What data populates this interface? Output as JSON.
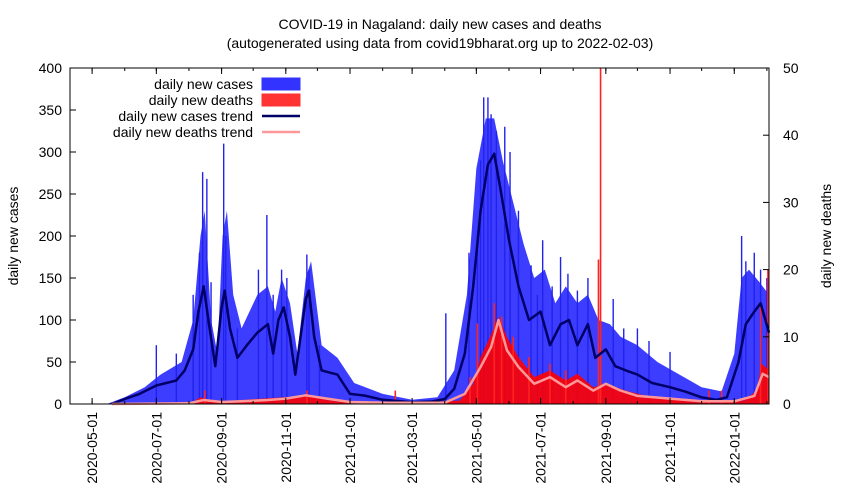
{
  "chart_data": {
    "type": "bar",
    "title": "COVID-19 in Nagaland: daily new cases and deaths",
    "subtitle": "(autogenerated using data from covid19bharat.org up to 2022-02-03)",
    "ylabel": "daily new cases",
    "y2label": "daily new deaths",
    "xlim": [
      "2020-04-10",
      "2022-02-03"
    ],
    "ylim": [
      0,
      400
    ],
    "y2lim": [
      0,
      50
    ],
    "yticks": [
      0,
      50,
      100,
      150,
      200,
      250,
      300,
      350,
      400
    ],
    "y2ticks": [
      0,
      10,
      20,
      30,
      40,
      50
    ],
    "xticks": [
      "2020-05-01",
      "2020-07-01",
      "2020-09-01",
      "2020-11-01",
      "2021-01-01",
      "2021-03-01",
      "2021-05-01",
      "2021-07-01",
      "2021-09-01",
      "2021-11-01",
      "2022-01-01"
    ],
    "grid": false,
    "legend_position": "top-left",
    "legend": [
      {
        "label": "daily new cases",
        "color": "#3333ff",
        "style": "box"
      },
      {
        "label": "daily new deaths",
        "color": "#ff3333",
        "style": "box"
      },
      {
        "label": "daily new cases trend",
        "color": "#000066",
        "style": "line"
      },
      {
        "label": "daily new deaths trend",
        "color": "#ff9999",
        "style": "line"
      }
    ],
    "series": [
      {
        "name": "daily new cases trend",
        "axis": "y",
        "points": [
          [
            "2020-05-20",
            0
          ],
          [
            "2020-06-01",
            6
          ],
          [
            "2020-06-15",
            12
          ],
          [
            "2020-07-01",
            22
          ],
          [
            "2020-07-20",
            28
          ],
          [
            "2020-07-28",
            40
          ],
          [
            "2020-08-05",
            65
          ],
          [
            "2020-08-10",
            110
          ],
          [
            "2020-08-15",
            140
          ],
          [
            "2020-08-20",
            95
          ],
          [
            "2020-08-26",
            45
          ],
          [
            "2020-09-01",
            115
          ],
          [
            "2020-09-04",
            135
          ],
          [
            "2020-09-09",
            90
          ],
          [
            "2020-09-16",
            55
          ],
          [
            "2020-09-25",
            70
          ],
          [
            "2020-10-05",
            85
          ],
          [
            "2020-10-15",
            95
          ],
          [
            "2020-10-20",
            60
          ],
          [
            "2020-10-25",
            100
          ],
          [
            "2020-10-30",
            115
          ],
          [
            "2020-11-05",
            80
          ],
          [
            "2020-11-10",
            35
          ],
          [
            "2020-11-20",
            125
          ],
          [
            "2020-11-23",
            135
          ],
          [
            "2020-11-28",
            80
          ],
          [
            "2020-12-05",
            40
          ],
          [
            "2020-12-20",
            35
          ],
          [
            "2021-01-01",
            12
          ],
          [
            "2021-01-15",
            10
          ],
          [
            "2021-02-01",
            5
          ],
          [
            "2021-03-01",
            2
          ],
          [
            "2021-03-20",
            3
          ],
          [
            "2021-04-01",
            6
          ],
          [
            "2021-04-10",
            18
          ],
          [
            "2021-04-20",
            60
          ],
          [
            "2021-04-28",
            140
          ],
          [
            "2021-05-05",
            230
          ],
          [
            "2021-05-12",
            285
          ],
          [
            "2021-05-18",
            298
          ],
          [
            "2021-05-24",
            255
          ],
          [
            "2021-06-01",
            195
          ],
          [
            "2021-06-10",
            140
          ],
          [
            "2021-06-20",
            100
          ],
          [
            "2021-07-01",
            110
          ],
          [
            "2021-07-10",
            70
          ],
          [
            "2021-07-20",
            95
          ],
          [
            "2021-07-28",
            100
          ],
          [
            "2021-08-05",
            70
          ],
          [
            "2021-08-15",
            95
          ],
          [
            "2021-08-22",
            55
          ],
          [
            "2021-09-01",
            65
          ],
          [
            "2021-09-10",
            45
          ],
          [
            "2021-09-20",
            40
          ],
          [
            "2021-10-01",
            35
          ],
          [
            "2021-10-15",
            25
          ],
          [
            "2021-11-01",
            20
          ],
          [
            "2021-11-15",
            15
          ],
          [
            "2021-12-01",
            8
          ],
          [
            "2021-12-15",
            5
          ],
          [
            "2021-12-25",
            8
          ],
          [
            "2022-01-05",
            50
          ],
          [
            "2022-01-12",
            95
          ],
          [
            "2022-01-20",
            110
          ],
          [
            "2022-01-26",
            120
          ],
          [
            "2022-02-03",
            85
          ]
        ]
      },
      {
        "name": "daily new deaths trend",
        "axis": "y2",
        "points": [
          [
            "2020-05-20",
            0
          ],
          [
            "2020-08-01",
            0.1
          ],
          [
            "2020-08-15",
            0.6
          ],
          [
            "2020-09-01",
            0.3
          ],
          [
            "2020-09-20",
            0.4
          ],
          [
            "2020-10-15",
            0.6
          ],
          [
            "2020-11-01",
            0.8
          ],
          [
            "2020-11-20",
            1.3
          ],
          [
            "2020-12-10",
            0.8
          ],
          [
            "2021-01-01",
            0.3
          ],
          [
            "2021-02-01",
            0.2
          ],
          [
            "2021-04-01",
            0.2
          ],
          [
            "2021-04-20",
            1.5
          ],
          [
            "2021-05-05",
            5.5
          ],
          [
            "2021-05-15",
            8.5
          ],
          [
            "2021-05-22",
            12.5
          ],
          [
            "2021-05-30",
            8.0
          ],
          [
            "2021-06-10",
            5.5
          ],
          [
            "2021-06-25",
            3.0
          ],
          [
            "2021-07-10",
            4.0
          ],
          [
            "2021-07-25",
            2.5
          ],
          [
            "2021-08-05",
            3.5
          ],
          [
            "2021-08-20",
            2.0
          ],
          [
            "2021-09-01",
            3.0
          ],
          [
            "2021-09-15",
            2.0
          ],
          [
            "2021-10-01",
            1.2
          ],
          [
            "2021-11-01",
            0.8
          ],
          [
            "2021-12-01",
            0.4
          ],
          [
            "2022-01-01",
            0.4
          ],
          [
            "2022-01-20",
            1.2
          ],
          [
            "2022-01-28",
            4.5
          ],
          [
            "2022-02-03",
            4.0
          ]
        ]
      }
    ],
    "case_envelope": [
      [
        "2020-05-15",
        0
      ],
      [
        "2020-06-01",
        8
      ],
      [
        "2020-06-20",
        20
      ],
      [
        "2020-07-05",
        35
      ],
      [
        "2020-07-25",
        50
      ],
      [
        "2020-08-05",
        100
      ],
      [
        "2020-08-12",
        200
      ],
      [
        "2020-08-16",
        230
      ],
      [
        "2020-08-22",
        100
      ],
      [
        "2020-08-28",
        60
      ],
      [
        "2020-09-02",
        200
      ],
      [
        "2020-09-06",
        230
      ],
      [
        "2020-09-12",
        130
      ],
      [
        "2020-09-20",
        90
      ],
      [
        "2020-10-05",
        130
      ],
      [
        "2020-10-15",
        140
      ],
      [
        "2020-10-22",
        110
      ],
      [
        "2020-10-28",
        150
      ],
      [
        "2020-11-05",
        120
      ],
      [
        "2020-11-12",
        60
      ],
      [
        "2020-11-20",
        150
      ],
      [
        "2020-11-25",
        170
      ],
      [
        "2020-12-05",
        70
      ],
      [
        "2020-12-20",
        55
      ],
      [
        "2021-01-05",
        25
      ],
      [
        "2021-02-01",
        12
      ],
      [
        "2021-03-01",
        5
      ],
      [
        "2021-03-25",
        8
      ],
      [
        "2021-04-10",
        40
      ],
      [
        "2021-04-22",
        130
      ],
      [
        "2021-05-01",
        280
      ],
      [
        "2021-05-10",
        340
      ],
      [
        "2021-05-18",
        340
      ],
      [
        "2021-05-26",
        290
      ],
      [
        "2021-06-05",
        240
      ],
      [
        "2021-06-15",
        190
      ],
      [
        "2021-06-25",
        150
      ],
      [
        "2021-07-05",
        160
      ],
      [
        "2021-07-15",
        120
      ],
      [
        "2021-07-25",
        140
      ],
      [
        "2021-08-05",
        120
      ],
      [
        "2021-08-15",
        130
      ],
      [
        "2021-08-25",
        100
      ],
      [
        "2021-09-05",
        95
      ],
      [
        "2021-09-15",
        80
      ],
      [
        "2021-10-01",
        70
      ],
      [
        "2021-10-20",
        50
      ],
      [
        "2021-11-10",
        35
      ],
      [
        "2021-12-01",
        20
      ],
      [
        "2021-12-20",
        15
      ],
      [
        "2022-01-01",
        60
      ],
      [
        "2022-01-08",
        150
      ],
      [
        "2022-01-15",
        160
      ],
      [
        "2022-01-25",
        145
      ],
      [
        "2022-02-03",
        130
      ]
    ],
    "case_spikes": [
      [
        "2020-07-01",
        70
      ],
      [
        "2020-07-20",
        60
      ],
      [
        "2020-08-05",
        130
      ],
      [
        "2020-08-11",
        180
      ],
      [
        "2020-08-14",
        276
      ],
      [
        "2020-08-18",
        268
      ],
      [
        "2020-08-22",
        145
      ],
      [
        "2020-09-03",
        310
      ],
      [
        "2020-09-05",
        200
      ],
      [
        "2020-09-16",
        90
      ],
      [
        "2020-10-06",
        160
      ],
      [
        "2020-10-14",
        225
      ],
      [
        "2020-10-20",
        130
      ],
      [
        "2020-10-28",
        160
      ],
      [
        "2020-11-02",
        150
      ],
      [
        "2020-11-21",
        178
      ],
      [
        "2020-11-23",
        160
      ],
      [
        "2020-12-03",
        70
      ],
      [
        "2021-04-02",
        108
      ],
      [
        "2021-04-24",
        180
      ],
      [
        "2021-05-02",
        200
      ],
      [
        "2021-05-05",
        290
      ],
      [
        "2021-05-08",
        365
      ],
      [
        "2021-05-12",
        365
      ],
      [
        "2021-05-15",
        345
      ],
      [
        "2021-05-20",
        325
      ],
      [
        "2021-05-28",
        330
      ],
      [
        "2021-06-02",
        300
      ],
      [
        "2021-06-10",
        230
      ],
      [
        "2021-06-22",
        165
      ],
      [
        "2021-06-28",
        130
      ],
      [
        "2021-07-03",
        195
      ],
      [
        "2021-07-12",
        140
      ],
      [
        "2021-07-20",
        175
      ],
      [
        "2021-07-27",
        155
      ],
      [
        "2021-08-05",
        135
      ],
      [
        "2021-08-15",
        150
      ],
      [
        "2021-09-08",
        125
      ],
      [
        "2021-09-18",
        90
      ],
      [
        "2021-10-01",
        90
      ],
      [
        "2021-10-12",
        75
      ],
      [
        "2021-11-01",
        62
      ],
      [
        "2022-01-08",
        200
      ],
      [
        "2022-01-12",
        170
      ],
      [
        "2022-01-20",
        180
      ],
      [
        "2022-01-26",
        160
      ],
      [
        "2022-02-01",
        150
      ]
    ],
    "death_envelope": [
      [
        "2020-08-01",
        0
      ],
      [
        "2020-08-12",
        1
      ],
      [
        "2020-08-20",
        0.5
      ],
      [
        "2020-09-10",
        0.5
      ],
      [
        "2020-11-20",
        1.2
      ],
      [
        "2020-12-10",
        0.6
      ],
      [
        "2021-01-10",
        0
      ],
      [
        "2021-04-15",
        0.5
      ],
      [
        "2021-04-28",
        3
      ],
      [
        "2021-05-05",
        7
      ],
      [
        "2021-05-14",
        10
      ],
      [
        "2021-05-22",
        13
      ],
      [
        "2021-05-30",
        10
      ],
      [
        "2021-06-10",
        7
      ],
      [
        "2021-06-25",
        4
      ],
      [
        "2021-07-10",
        5
      ],
      [
        "2021-07-25",
        3.5
      ],
      [
        "2021-08-05",
        4.5
      ],
      [
        "2021-08-20",
        2.5
      ],
      [
        "2021-09-01",
        3
      ],
      [
        "2021-09-20",
        2
      ],
      [
        "2021-10-15",
        1
      ],
      [
        "2021-11-15",
        0.5
      ],
      [
        "2021-12-15",
        0.2
      ],
      [
        "2022-01-10",
        0.5
      ],
      [
        "2022-01-22",
        2
      ],
      [
        "2022-01-27",
        6
      ],
      [
        "2022-02-03",
        5
      ]
    ],
    "death_spikes": [
      [
        "2020-08-16",
        2
      ],
      [
        "2020-11-21",
        2
      ],
      [
        "2021-02-13",
        2
      ],
      [
        "2021-04-25",
        4
      ],
      [
        "2021-05-02",
        12
      ],
      [
        "2021-05-18",
        15
      ],
      [
        "2021-05-25",
        13
      ],
      [
        "2021-06-05",
        10
      ],
      [
        "2021-06-20",
        7
      ],
      [
        "2021-07-10",
        6
      ],
      [
        "2021-07-25",
        5
      ],
      [
        "2021-08-25",
        21.5
      ],
      [
        "2021-08-27",
        50
      ],
      [
        "2021-12-08",
        2
      ],
      [
        "2021-12-20",
        2
      ],
      [
        "2022-01-26",
        15
      ],
      [
        "2022-02-02",
        20
      ]
    ]
  }
}
